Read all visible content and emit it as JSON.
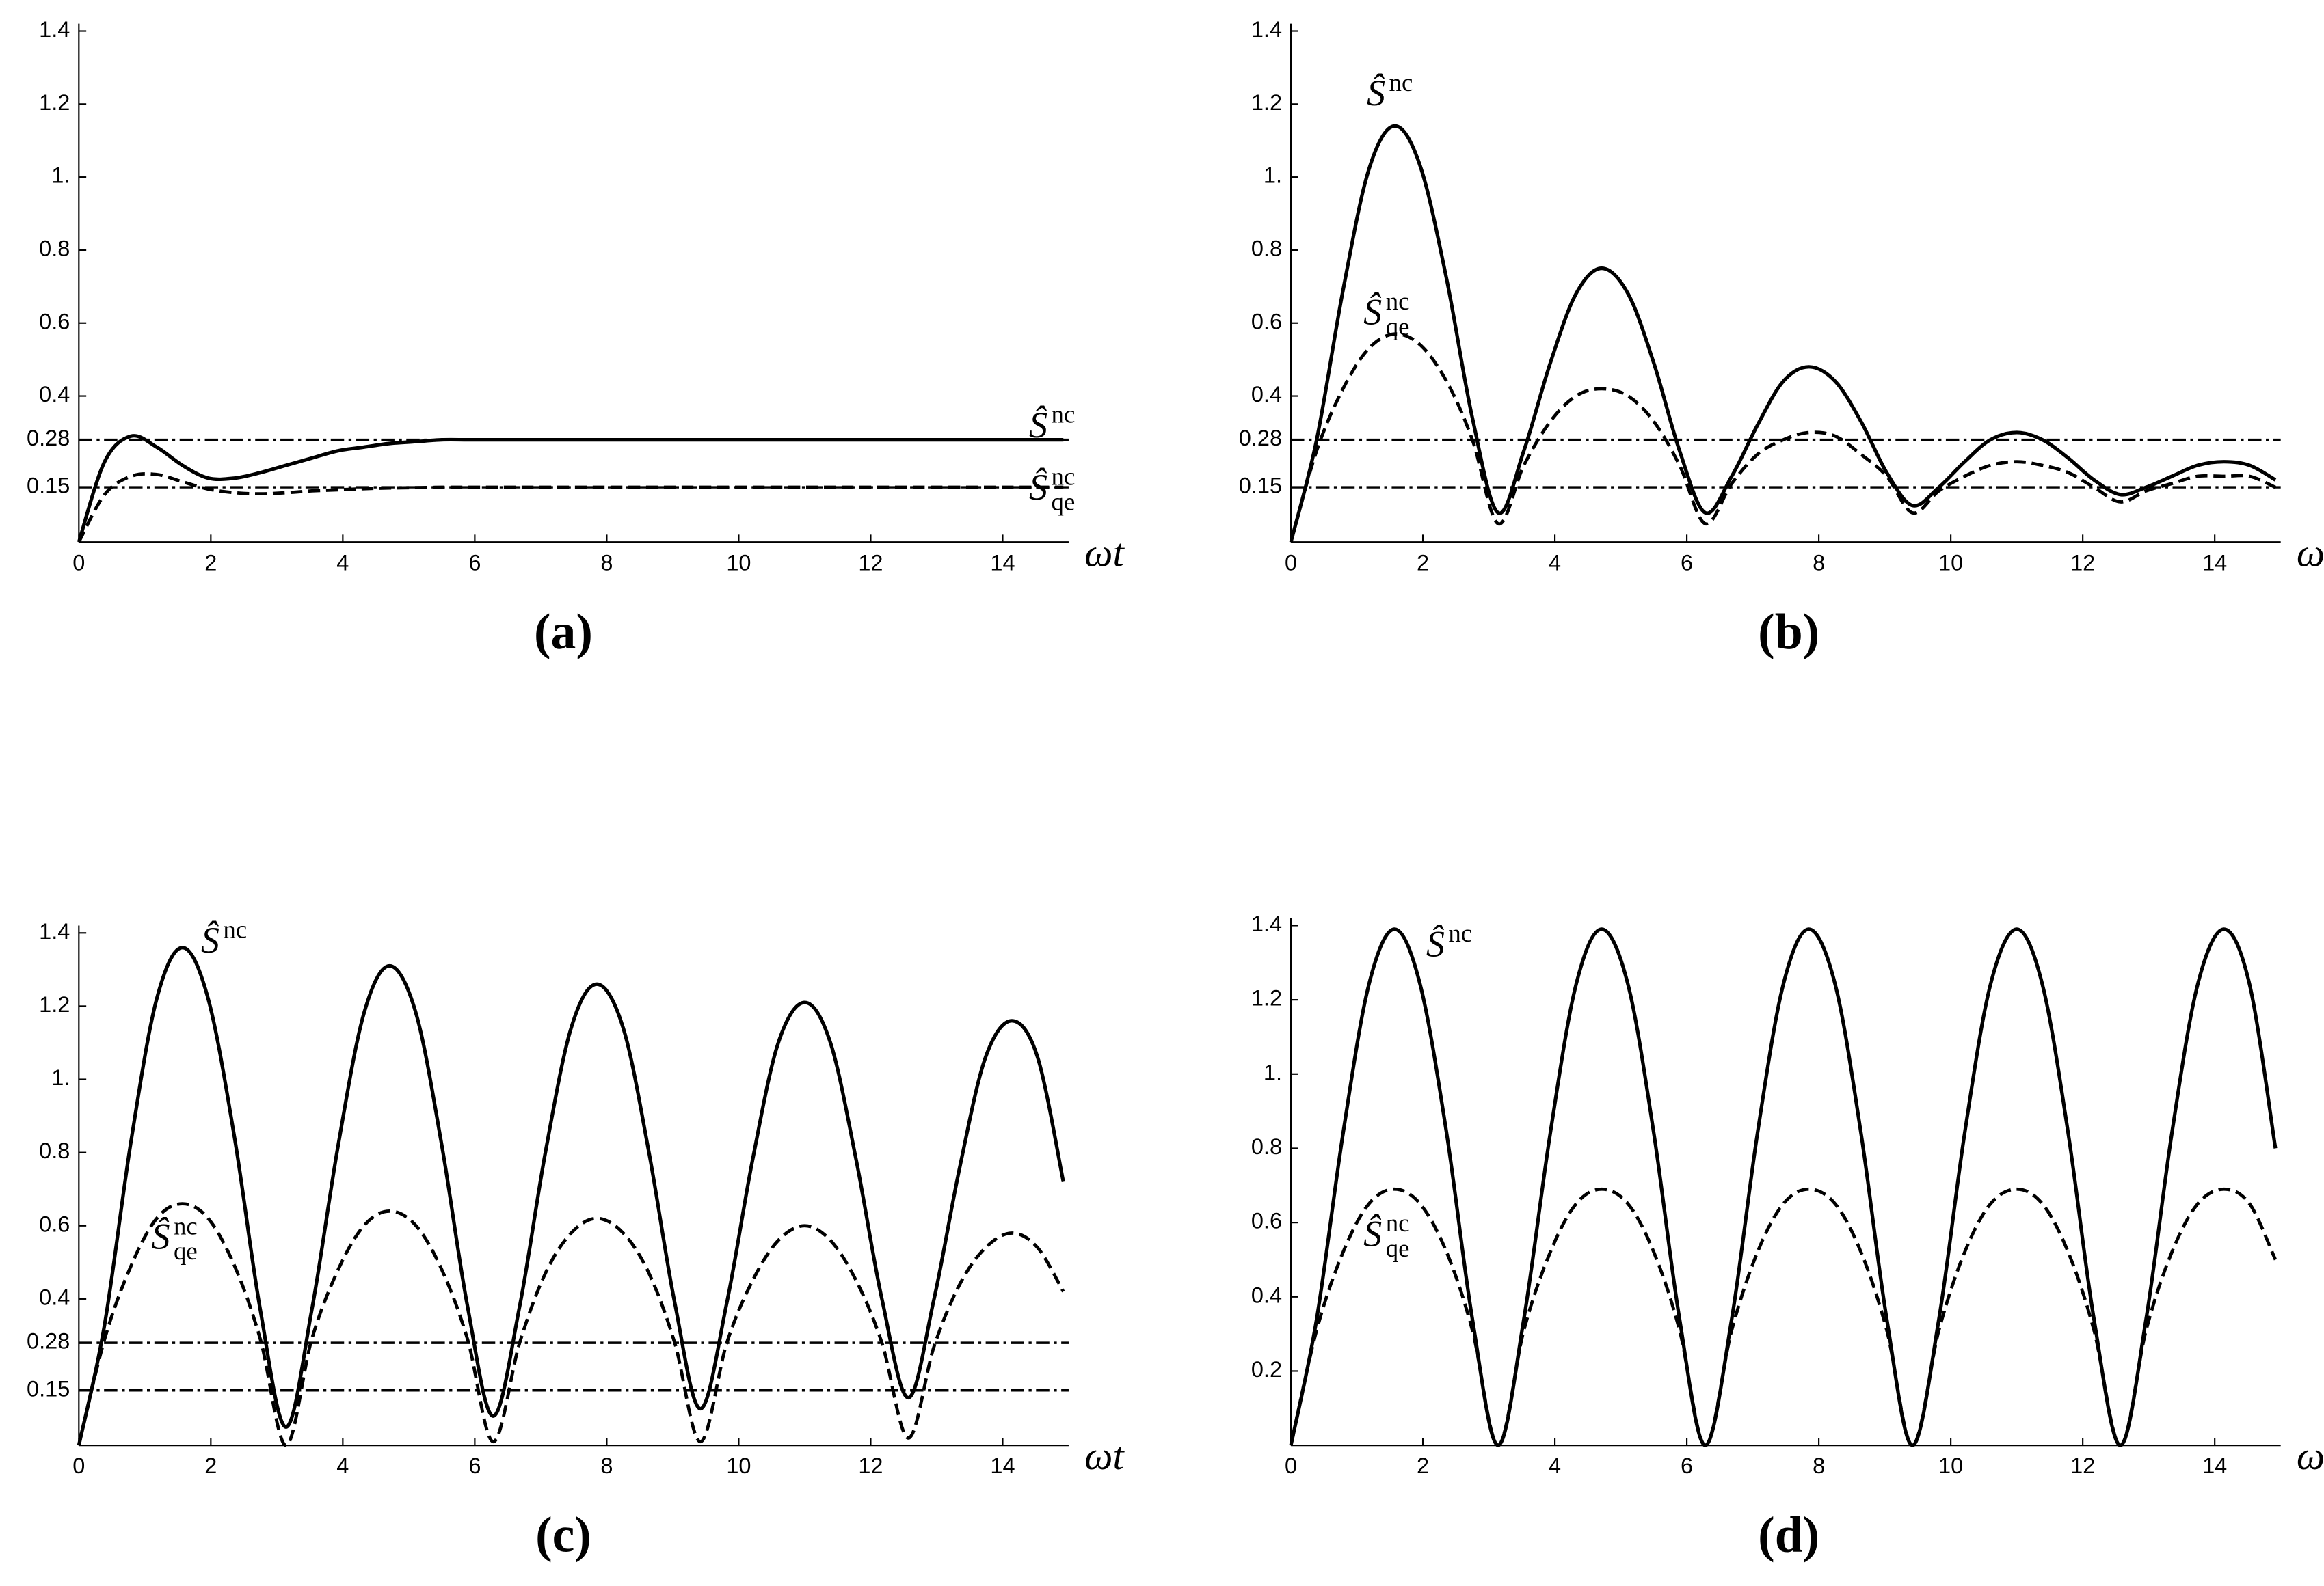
{
  "chart_data": [
    {
      "type": "line",
      "panel_label": "(a)",
      "x_label": "ωt",
      "xlim": [
        0,
        15
      ],
      "ylim": [
        0,
        1.4
      ],
      "xticks": [
        0,
        2,
        4,
        6,
        8,
        10,
        12,
        14
      ],
      "yticks": [
        0.15,
        0.28,
        0.4,
        0.6,
        0.8,
        {
          "value": 1,
          "label": "1."
        },
        1.2,
        1.4
      ],
      "hlines": [
        0.28,
        0.15
      ],
      "hline_style": "dashdot",
      "x": [
        0,
        0.39,
        0.79,
        1.18,
        1.57,
        1.96,
        2.36,
        2.75,
        3.14,
        3.53,
        3.93,
        4.32,
        4.71,
        5.11,
        5.5,
        5.89,
        6.28,
        6.68,
        7.07,
        7.46,
        7.85,
        8.25,
        8.64,
        9.03,
        9.42,
        9.82,
        10.21,
        10.6,
        11,
        11.39,
        11.78,
        12.17,
        12.57,
        12.96,
        13.35,
        13.74,
        14.14,
        14.53,
        14.92
      ],
      "series": [
        {
          "color": "#000000",
          "style": "solid",
          "values": [
            0,
            0.22,
            0.29,
            0.26,
            0.21,
            0.175,
            0.175,
            0.19,
            0.21,
            0.23,
            0.25,
            0.26,
            0.27,
            0.275,
            0.28,
            0.28,
            0.28,
            0.28,
            0.28,
            0.28,
            0.28,
            0.28,
            0.28,
            0.28,
            0.28,
            0.28,
            0.28,
            0.28,
            0.28,
            0.28,
            0.28,
            0.28,
            0.28,
            0.28,
            0.28,
            0.28,
            0.28,
            0.28,
            0.28
          ]
        },
        {
          "color": "#000000",
          "style": "dashed",
          "values": [
            0,
            0.13,
            0.18,
            0.185,
            0.165,
            0.145,
            0.135,
            0.132,
            0.135,
            0.14,
            0.143,
            0.146,
            0.148,
            0.149,
            0.15,
            0.15,
            0.15,
            0.15,
            0.15,
            0.15,
            0.15,
            0.15,
            0.15,
            0.15,
            0.15,
            0.15,
            0.15,
            0.15,
            0.15,
            0.15,
            0.15,
            0.15,
            0.15,
            0.15,
            0.15,
            0.15,
            0.15,
            0.15,
            0.15
          ]
        }
      ],
      "annotations": [
        {
          "text": "Ŝ",
          "sup": "nc"
        },
        {
          "text": "Ŝ",
          "sup": "nc",
          "sub": "qe"
        }
      ]
    },
    {
      "type": "line",
      "panel_label": "(b)",
      "x_label": "ωt",
      "xlim": [
        0,
        15
      ],
      "ylim": [
        0,
        1.4
      ],
      "xticks": [
        0,
        2,
        4,
        6,
        8,
        10,
        12,
        14
      ],
      "yticks": [
        0.15,
        0.28,
        0.4,
        0.6,
        0.8,
        {
          "value": 1,
          "label": "1."
        },
        1.2,
        1.4
      ],
      "hlines": [
        0.28,
        0.15
      ],
      "hline_style": "dashdot",
      "x": [
        0,
        0.39,
        0.79,
        1.18,
        1.57,
        1.96,
        2.36,
        2.75,
        3.14,
        3.53,
        3.93,
        4.32,
        4.71,
        5.11,
        5.5,
        5.89,
        6.28,
        6.68,
        7.07,
        7.46,
        7.85,
        8.25,
        8.64,
        9.03,
        9.42,
        9.82,
        10.21,
        10.6,
        11,
        11.39,
        11.78,
        12.17,
        12.57,
        12.96,
        13.35,
        13.74,
        14.14,
        14.53,
        14.92
      ],
      "series": [
        {
          "color": "#000000",
          "style": "solid",
          "values": [
            0,
            0.28,
            0.69,
            1.02,
            1.14,
            1.03,
            0.72,
            0.34,
            0.08,
            0.25,
            0.49,
            0.68,
            0.75,
            0.68,
            0.49,
            0.25,
            0.08,
            0.18,
            0.32,
            0.44,
            0.48,
            0.44,
            0.33,
            0.19,
            0.1,
            0.15,
            0.22,
            0.28,
            0.3,
            0.28,
            0.23,
            0.17,
            0.13,
            0.15,
            0.18,
            0.21,
            0.22,
            0.21,
            0.17
          ]
        },
        {
          "color": "#000000",
          "style": "dashed",
          "values": [
            0,
            0.25,
            0.42,
            0.53,
            0.57,
            0.54,
            0.44,
            0.28,
            0.05,
            0.21,
            0.33,
            0.4,
            0.42,
            0.4,
            0.33,
            0.21,
            0.05,
            0.16,
            0.24,
            0.28,
            0.3,
            0.29,
            0.24,
            0.18,
            0.08,
            0.14,
            0.18,
            0.21,
            0.22,
            0.21,
            0.19,
            0.15,
            0.11,
            0.14,
            0.16,
            0.18,
            0.18,
            0.18,
            0.15
          ]
        }
      ],
      "annotations": [
        {
          "text": "Ŝ",
          "sup": "nc"
        },
        {
          "text": "Ŝ",
          "sup": "nc",
          "sub": "qe"
        }
      ]
    },
    {
      "type": "line",
      "panel_label": "(c)",
      "x_label": "ωt",
      "xlim": [
        0,
        15
      ],
      "ylim": [
        0,
        1.4
      ],
      "xticks": [
        0,
        2,
        4,
        6,
        8,
        10,
        12,
        14
      ],
      "yticks": [
        0.15,
        0.28,
        0.4,
        0.6,
        0.8,
        {
          "value": 1,
          "label": "1."
        },
        1.2,
        1.4
      ],
      "hlines": [
        0.28,
        0.15
      ],
      "hline_style": "dashdot",
      "x": [
        0,
        0.39,
        0.79,
        1.18,
        1.57,
        1.96,
        2.36,
        2.75,
        3.14,
        3.53,
        3.93,
        4.32,
        4.71,
        5.11,
        5.5,
        5.89,
        6.28,
        6.68,
        7.07,
        7.46,
        7.85,
        8.25,
        8.64,
        9.03,
        9.42,
        9.82,
        10.21,
        10.6,
        11,
        11.39,
        11.78,
        12.17,
        12.57,
        12.96,
        13.35,
        13.74,
        14.14,
        14.53,
        14.92
      ],
      "series": [
        {
          "color": "#000000",
          "style": "solid",
          "values": [
            0,
            0.33,
            0.83,
            1.22,
            1.36,
            1.22,
            0.84,
            0.37,
            0.05,
            0.37,
            0.82,
            1.18,
            1.31,
            1.18,
            0.82,
            0.38,
            0.08,
            0.38,
            0.8,
            1.14,
            1.26,
            1.14,
            0.8,
            0.39,
            0.1,
            0.39,
            0.78,
            1.1,
            1.21,
            1.1,
            0.78,
            0.4,
            0.13,
            0.4,
            0.76,
            1.06,
            1.16,
            1.06,
            0.72
          ]
        },
        {
          "color": "#000000",
          "style": "dashed",
          "values": [
            0,
            0.29,
            0.49,
            0.62,
            0.66,
            0.62,
            0.49,
            0.29,
            0,
            0.29,
            0.48,
            0.6,
            0.64,
            0.6,
            0.48,
            0.29,
            0.01,
            0.28,
            0.47,
            0.58,
            0.62,
            0.58,
            0.47,
            0.28,
            0.01,
            0.28,
            0.45,
            0.56,
            0.6,
            0.56,
            0.45,
            0.28,
            0.02,
            0.27,
            0.44,
            0.54,
            0.58,
            0.54,
            0.42
          ]
        }
      ],
      "annotations": [
        {
          "text": "Ŝ",
          "sup": "nc"
        },
        {
          "text": "Ŝ",
          "sup": "nc",
          "sub": "qe"
        }
      ]
    },
    {
      "type": "line",
      "panel_label": "(d)",
      "x_label": "ωt",
      "xlim": [
        0,
        15
      ],
      "ylim": [
        0,
        1.4
      ],
      "xticks": [
        0,
        2,
        4,
        6,
        8,
        10,
        12,
        14
      ],
      "yticks": [
        0.2,
        0.4,
        0.6,
        0.8,
        {
          "value": 1,
          "label": "1."
        },
        1.2,
        1.4
      ],
      "x": [
        0,
        0.39,
        0.79,
        1.18,
        1.57,
        1.96,
        2.36,
        2.75,
        3.14,
        3.53,
        3.93,
        4.32,
        4.71,
        5.11,
        5.5,
        5.89,
        6.28,
        6.68,
        7.07,
        7.46,
        7.85,
        8.25,
        8.64,
        9.03,
        9.42,
        9.82,
        10.21,
        10.6,
        11,
        11.39,
        11.78,
        12.17,
        12.57,
        12.96,
        13.35,
        13.74,
        14.14,
        14.53,
        14.92
      ],
      "series": [
        {
          "color": "#000000",
          "style": "solid",
          "values": [
            0,
            0.34,
            0.84,
            1.24,
            1.39,
            1.24,
            0.84,
            0.34,
            0,
            0.34,
            0.84,
            1.24,
            1.39,
            1.24,
            0.84,
            0.34,
            0,
            0.34,
            0.84,
            1.24,
            1.39,
            1.24,
            0.84,
            0.34,
            0,
            0.34,
            0.84,
            1.24,
            1.39,
            1.24,
            0.84,
            0.34,
            0,
            0.34,
            0.84,
            1.24,
            1.39,
            1.24,
            0.8
          ]
        },
        {
          "color": "#000000",
          "style": "dashed",
          "values": [
            0,
            0.31,
            0.52,
            0.65,
            0.69,
            0.65,
            0.52,
            0.31,
            0,
            0.31,
            0.52,
            0.65,
            0.69,
            0.65,
            0.52,
            0.31,
            0,
            0.31,
            0.52,
            0.65,
            0.69,
            0.65,
            0.52,
            0.31,
            0,
            0.31,
            0.52,
            0.65,
            0.69,
            0.65,
            0.52,
            0.31,
            0,
            0.31,
            0.52,
            0.65,
            0.69,
            0.65,
            0.5
          ]
        }
      ],
      "annotations": [
        {
          "text": "Ŝ",
          "sup": "nc"
        },
        {
          "text": "Ŝ",
          "sup": "nc",
          "sub": "qe"
        }
      ]
    }
  ]
}
